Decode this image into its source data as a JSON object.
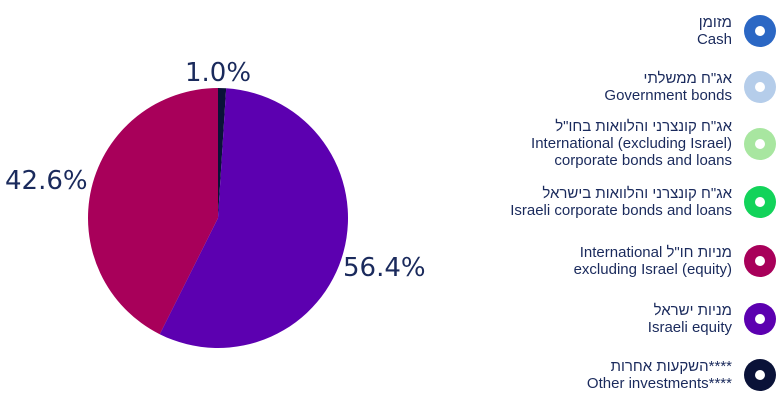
{
  "chart_data": {
    "type": "pie",
    "slices": [
      {
        "label_he": "מזומן",
        "label_en": "Cash",
        "value": 0,
        "color": "#2b67c4"
      },
      {
        "label_he": "אג\"ח ממשלתי",
        "label_en": "Government bonds",
        "value": 0,
        "color": "#b5cdea"
      },
      {
        "label_he": "אג\"ח קונצרני והלוואות בחו\"ל",
        "label_en": "International (excluding Israel) corporate bonds and loans",
        "value": 0,
        "color": "#a8e6a0"
      },
      {
        "label_he": "אג\"ח קונצרני והלוואות בישראל",
        "label_en": "Israeli corporate bonds and loans",
        "value": 0,
        "color": "#12d35a"
      },
      {
        "label_he": "מניות חו\"ל",
        "label_en": "International excluding Israel (equity)",
        "value": 42.6,
        "color": "#a8005a"
      },
      {
        "label_he": "מניות ישראל",
        "label_en": "Israeli equity",
        "value": 56.4,
        "color": "#5c00b0"
      },
      {
        "label_he": "השקעות אחרות****",
        "label_en": "Other investments****",
        "value": 1.0,
        "color": "#0a1238"
      }
    ],
    "data_labels": [
      "1.0%",
      "56.4%",
      "42.6%"
    ]
  },
  "legend": {
    "items": [
      {
        "line1": "מזומן",
        "line2": "Cash",
        "color": "#2b67c4"
      },
      {
        "line1": "אג\"ח ממשלתי",
        "line2": "Government bonds",
        "color": "#b5cdea"
      },
      {
        "line1": "אג\"ח קונצרני והלוואות בחו\"ל",
        "line2": "International (excluding Israel)",
        "line3": "corporate bonds and loans",
        "color": "#a8e6a0"
      },
      {
        "line1": "אג\"ח קונצרני והלוואות בישראל",
        "line2": "Israeli corporate bonds and loans",
        "color": "#12d35a"
      },
      {
        "line1": "International מניות חו\"ל",
        "line2": "excluding Israel (equity)",
        "color": "#a8005a"
      },
      {
        "line1": "מניות ישראל",
        "line2": "Israeli equity",
        "color": "#5c00b0"
      },
      {
        "line1": "השקעות אחרות****",
        "line2": "Other investments****",
        "color": "#0a1238"
      }
    ]
  }
}
